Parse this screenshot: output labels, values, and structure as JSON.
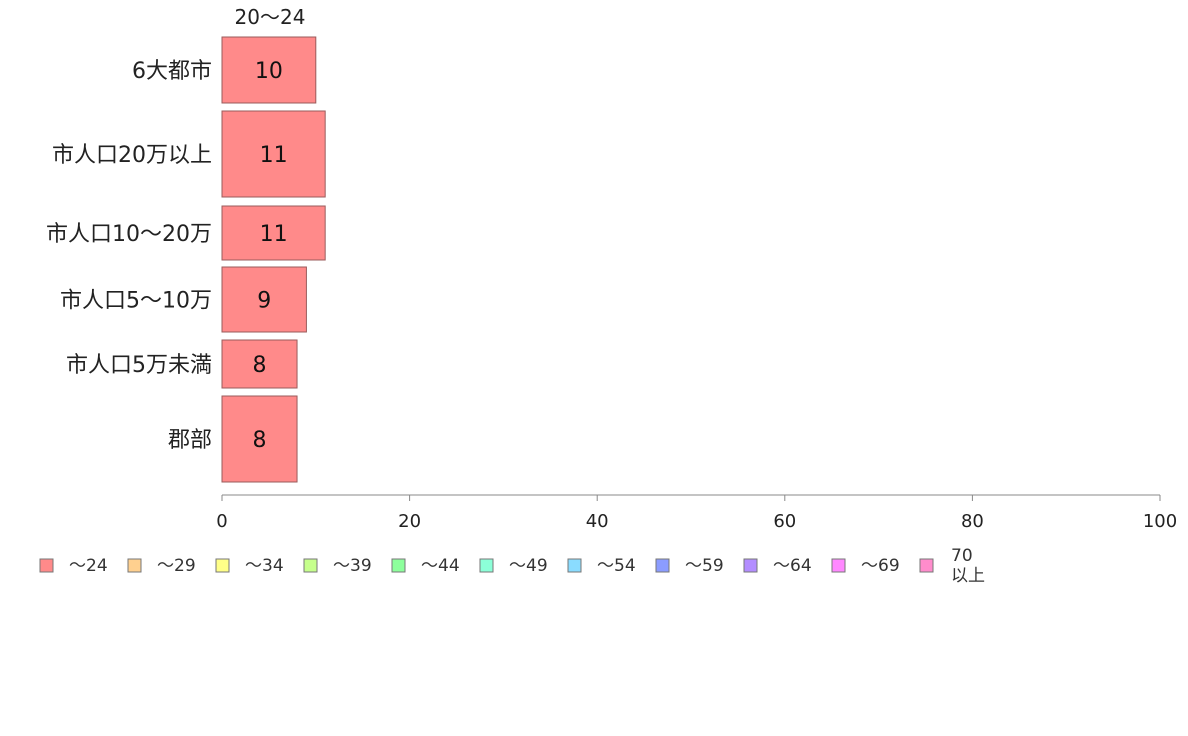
{
  "chart_data": {
    "type": "bar",
    "orientation": "horizontal",
    "stacked": true,
    "categories": [
      "6大都市",
      "市人口20万以上",
      "市人口10〜20万",
      "市人口5〜10万",
      "市人口5万未満",
      "郡部"
    ],
    "series": [
      {
        "name": "20〜24",
        "values": [
          10,
          11,
          11,
          9,
          8,
          8
        ],
        "color": "#ff8a8a"
      }
    ],
    "column_header": "20〜24",
    "xlim": [
      0,
      100
    ],
    "xticks": [
      0,
      20,
      40,
      60,
      80,
      100
    ],
    "grid": false,
    "legend_position": "bottom-left",
    "legend": [
      {
        "label": "〜24",
        "color": "#ff8a8a"
      },
      {
        "label": "〜29",
        "color": "#ffd08f"
      },
      {
        "label": "〜34",
        "color": "#ffff88"
      },
      {
        "label": "〜39",
        "color": "#c6ff8c"
      },
      {
        "label": "〜44",
        "color": "#8dff9c"
      },
      {
        "label": "〜49",
        "color": "#8cffd8"
      },
      {
        "label": "〜54",
        "color": "#8adcff"
      },
      {
        "label": "〜59",
        "color": "#8b9cff"
      },
      {
        "label": "〜64",
        "color": "#b38dff"
      },
      {
        "label": "〜69",
        "color": "#ff88ff"
      },
      {
        "label": "70\n以上",
        "color": "#ff8ccc"
      }
    ],
    "colors": {
      "axis": "#888888",
      "bar_stroke": "#9a5b5b"
    }
  }
}
